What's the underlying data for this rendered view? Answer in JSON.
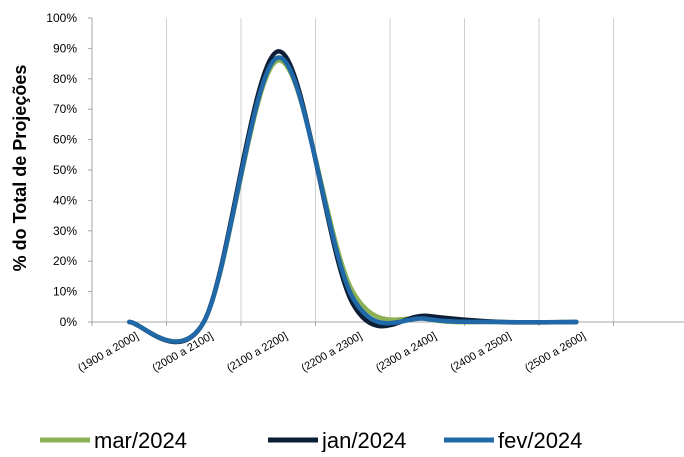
{
  "chart_data": {
    "type": "line",
    "ylabel": "% do Total de Projeções",
    "xlabel": "",
    "title": "",
    "categories": [
      "(1900 a 2000]",
      "(2000 a 2100]",
      "(2100 a 2200]",
      "(2200 a 2300]",
      "(2300 a 2400]",
      "(2400 a 2500]",
      "(2500 a 2600]"
    ],
    "ylim": [
      0,
      100
    ],
    "yticks": [
      "0%",
      "10%",
      "20%",
      "30%",
      "40%",
      "50%",
      "60%",
      "70%",
      "80%",
      "90%",
      "100%"
    ],
    "grid": "vertical",
    "legend_position": "bottom",
    "series": [
      {
        "name": "mar/2024",
        "color": "#8DB255",
        "values": [
          0,
          0,
          86,
          10,
          1,
          0,
          0
        ]
      },
      {
        "name": "jan/2024",
        "color": "#0D1F36",
        "values": [
          0,
          0,
          89,
          6,
          2,
          0,
          0
        ]
      },
      {
        "name": "fev/2024",
        "color": "#2068A8",
        "values": [
          0,
          0,
          87,
          8,
          1,
          0,
          0
        ]
      }
    ]
  }
}
